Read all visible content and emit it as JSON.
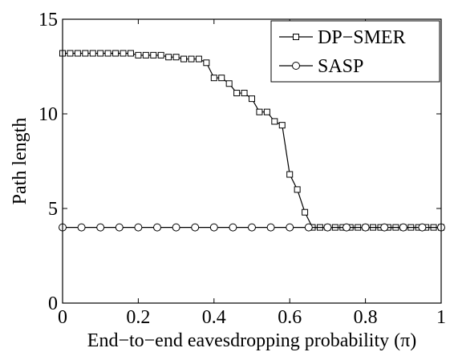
{
  "chart_data": {
    "type": "line",
    "title": "",
    "xlabel": "End−to−end eavesdropping probability (π)",
    "ylabel": "Path length",
    "xlim": [
      0,
      1
    ],
    "ylim": [
      0,
      15
    ],
    "xticks": [
      0,
      0.2,
      0.4,
      0.6,
      0.8,
      1
    ],
    "xtick_labels": [
      "0",
      "0.2",
      "0.4",
      "0.6",
      "0.8",
      "1"
    ],
    "yticks": [
      0,
      5,
      10,
      15
    ],
    "ytick_labels": [
      "0",
      "5",
      "10",
      "15"
    ],
    "grid": false,
    "legend_position": "top-right",
    "series": [
      {
        "name": "DP−SMER",
        "marker": "square",
        "color": "#000000",
        "x": [
          0,
          0.02,
          0.04,
          0.06,
          0.08,
          0.1,
          0.12,
          0.14,
          0.16,
          0.18,
          0.2,
          0.22,
          0.24,
          0.26,
          0.28,
          0.3,
          0.32,
          0.34,
          0.36,
          0.38,
          0.4,
          0.42,
          0.44,
          0.46,
          0.48,
          0.5,
          0.52,
          0.54,
          0.56,
          0.58,
          0.6,
          0.62,
          0.64,
          0.66,
          0.68,
          0.7,
          0.72,
          0.74,
          0.76,
          0.78,
          0.8,
          0.82,
          0.84,
          0.86,
          0.88,
          0.9,
          0.92,
          0.94,
          0.96,
          0.98,
          1.0
        ],
        "y": [
          13.2,
          13.2,
          13.2,
          13.2,
          13.2,
          13.2,
          13.2,
          13.2,
          13.2,
          13.2,
          13.1,
          13.1,
          13.1,
          13.1,
          13.0,
          13.0,
          12.9,
          12.9,
          12.9,
          12.7,
          11.9,
          11.9,
          11.6,
          11.1,
          11.1,
          10.8,
          10.1,
          10.1,
          9.6,
          9.4,
          6.8,
          6.0,
          4.8,
          4.0,
          4.0,
          4.0,
          4.0,
          4.0,
          4.0,
          4.0,
          4.0,
          4.0,
          4.0,
          4.0,
          4.0,
          4.0,
          4.0,
          4.0,
          4.0,
          4.0,
          4.0
        ]
      },
      {
        "name": "SASP",
        "marker": "circle",
        "color": "#000000",
        "x": [
          0,
          0.05,
          0.1,
          0.15,
          0.2,
          0.25,
          0.3,
          0.35,
          0.4,
          0.45,
          0.5,
          0.55,
          0.6,
          0.65,
          0.7,
          0.75,
          0.8,
          0.85,
          0.9,
          0.95,
          1.0
        ],
        "y": [
          4,
          4,
          4,
          4,
          4,
          4,
          4,
          4,
          4,
          4,
          4,
          4,
          4,
          4,
          4,
          4,
          4,
          4,
          4,
          4,
          4
        ]
      }
    ]
  }
}
